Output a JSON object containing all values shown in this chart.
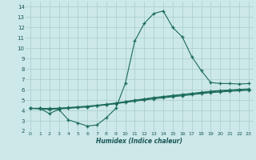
{
  "xlabel": "Humidex (Indice chaleur)",
  "bg_color": "#cce8e8",
  "grid_color": "#aacccc",
  "line_color": "#1a6b5a",
  "xlim": [
    -0.5,
    23.5
  ],
  "ylim": [
    2,
    14.5
  ],
  "xticks": [
    0,
    1,
    2,
    3,
    4,
    5,
    6,
    7,
    8,
    9,
    10,
    11,
    12,
    13,
    14,
    15,
    16,
    17,
    18,
    19,
    20,
    21,
    22,
    23
  ],
  "yticks": [
    2,
    3,
    4,
    5,
    6,
    7,
    8,
    9,
    10,
    11,
    12,
    13,
    14
  ],
  "curve1_x": [
    0,
    1,
    2,
    3,
    4,
    5,
    6,
    7,
    8,
    9,
    10,
    11,
    12,
    13,
    14,
    15,
    16,
    17,
    18,
    19,
    20,
    21,
    22,
    23
  ],
  "curve1_y": [
    4.2,
    4.2,
    3.7,
    4.1,
    3.1,
    2.8,
    2.5,
    2.6,
    3.3,
    4.2,
    6.6,
    10.7,
    12.4,
    13.35,
    13.6,
    12.0,
    11.1,
    9.2,
    7.85,
    6.7,
    6.6,
    6.6,
    6.55,
    6.6
  ],
  "curve2_x": [
    0,
    1,
    2,
    3,
    4,
    5,
    6,
    7,
    8,
    9,
    10,
    11,
    12,
    13,
    14,
    15,
    16,
    17,
    18,
    19,
    20,
    21,
    22,
    23
  ],
  "curve2_y": [
    4.2,
    4.2,
    4.2,
    4.2,
    4.25,
    4.3,
    4.35,
    4.45,
    4.55,
    4.65,
    4.78,
    4.9,
    5.0,
    5.12,
    5.22,
    5.32,
    5.42,
    5.52,
    5.62,
    5.72,
    5.78,
    5.85,
    5.9,
    5.95
  ],
  "curve3_x": [
    0,
    1,
    2,
    3,
    4,
    5,
    6,
    7,
    8,
    9,
    10,
    11,
    12,
    13,
    14,
    15,
    16,
    17,
    18,
    19,
    20,
    21,
    22,
    23
  ],
  "curve3_y": [
    4.2,
    4.2,
    4.18,
    4.22,
    4.28,
    4.35,
    4.42,
    4.5,
    4.6,
    4.72,
    4.85,
    5.0,
    5.12,
    5.25,
    5.35,
    5.45,
    5.55,
    5.65,
    5.75,
    5.85,
    5.92,
    5.98,
    6.03,
    6.08
  ],
  "curve4_x": [
    0,
    1,
    2,
    3,
    4,
    5,
    6,
    7,
    8,
    9,
    10,
    11,
    12,
    13,
    14,
    15,
    16,
    17,
    18,
    19,
    20,
    21,
    22,
    23
  ],
  "curve4_y": [
    4.2,
    4.15,
    4.1,
    4.15,
    4.2,
    4.28,
    4.35,
    4.45,
    4.55,
    4.68,
    4.82,
    4.95,
    5.08,
    5.2,
    5.3,
    5.4,
    5.5,
    5.6,
    5.7,
    5.8,
    5.87,
    5.93,
    5.98,
    6.03
  ]
}
